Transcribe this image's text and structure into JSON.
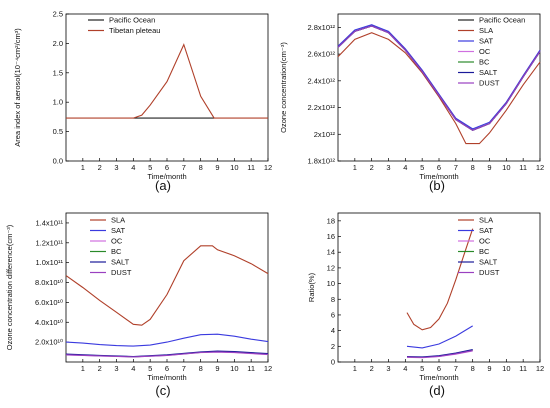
{
  "panel_labels": [
    "(a)",
    "(b)",
    "(c)",
    "(d)"
  ],
  "chart_data": [
    {
      "panel": "(a)",
      "type": "line",
      "xlabel": "Time/month",
      "ylabel": "Area index of aerosol(10⁻⁴cm²/cm³)",
      "xlim": [
        0,
        12
      ],
      "ylim": [
        0,
        2.5
      ],
      "xticks": [
        1,
        2,
        3,
        4,
        5,
        6,
        7,
        8,
        9,
        10,
        11,
        12
      ],
      "yticks": [
        0.0,
        0.5,
        1.0,
        1.5,
        2.0,
        2.5
      ],
      "ytick_labels": [
        "0.0",
        "0.5",
        "1.0",
        "1.5",
        "2.0",
        "2.5"
      ],
      "legend_position": "top-center",
      "series": [
        {
          "name": "Pacific Ocean",
          "color": "#222222",
          "x": [
            4,
            7,
            8.8
          ],
          "y": [
            0.73,
            0.73,
            0.73
          ]
        },
        {
          "name": "Tibetan pleteau",
          "color": "#b0402a",
          "x": [
            0,
            4,
            4.5,
            5,
            6,
            7,
            8,
            8.8,
            12
          ],
          "y": [
            0.73,
            0.73,
            0.78,
            0.95,
            1.35,
            1.98,
            1.1,
            0.73,
            0.73
          ]
        }
      ]
    },
    {
      "panel": "(b)",
      "type": "line",
      "xlabel": "Time/month",
      "ylabel": "Ozone concentration(cm⁻³)",
      "xlim": [
        0,
        12
      ],
      "ylim": [
        1800000000000.0,
        2900000000000.0
      ],
      "xticks": [
        1,
        2,
        3,
        4,
        5,
        6,
        7,
        8,
        9,
        10,
        11,
        12
      ],
      "yticks": [
        1800000000000.0,
        2000000000000.0,
        2200000000000.0,
        2400000000000.0,
        2600000000000.0,
        2800000000000.0
      ],
      "ytick_labels": [
        "1.8x10¹²",
        "2x10¹²",
        "2.2x10¹²",
        "2.4x10¹²",
        "2.6x10¹²",
        "2.8x10¹²"
      ],
      "legend_position": "top-right",
      "series": [
        {
          "name": "Pacific Ocean",
          "color": "#222222",
          "x": [
            0,
            1,
            2,
            3,
            4,
            5,
            6,
            7,
            8,
            9,
            10,
            11,
            12
          ],
          "y": [
            2650000000000.0,
            2770000000000.0,
            2810000000000.0,
            2760000000000.0,
            2630000000000.0,
            2470000000000.0,
            2290000000000.0,
            2110000000000.0,
            2030000000000.0,
            2080000000000.0,
            2230000000000.0,
            2430000000000.0,
            2620000000000.0
          ]
        },
        {
          "name": "SLA",
          "color": "#b0402a",
          "x": [
            0,
            1,
            2,
            3,
            4,
            5,
            6,
            7,
            7.6,
            8.4,
            9,
            10,
            11,
            12
          ],
          "y": [
            2580000000000.0,
            2710000000000.0,
            2760000000000.0,
            2710000000000.0,
            2610000000000.0,
            2460000000000.0,
            2280000000000.0,
            2080000000000.0,
            1930000000000.0,
            1930000000000.0,
            2010000000000.0,
            2180000000000.0,
            2370000000000.0,
            2540000000000.0
          ]
        },
        {
          "name": "SAT",
          "color": "#3a3adf",
          "x": [
            0,
            1,
            2,
            3,
            4,
            5,
            6,
            7,
            8,
            9,
            10,
            11,
            12
          ],
          "y": [
            2660000000000.0,
            2780000000000.0,
            2820000000000.0,
            2770000000000.0,
            2640000000000.0,
            2480000000000.0,
            2300000000000.0,
            2120000000000.0,
            2040000000000.0,
            2090000000000.0,
            2240000000000.0,
            2440000000000.0,
            2630000000000.0
          ]
        },
        {
          "name": "OC",
          "color": "#d070e0",
          "x": [
            0,
            1,
            2,
            3,
            4,
            5,
            6,
            7,
            8,
            9,
            10,
            11,
            12
          ],
          "y": [
            2650000000000.0,
            2770000000000.0,
            2810000000000.0,
            2760000000000.0,
            2630000000000.0,
            2470000000000.0,
            2290000000000.0,
            2110000000000.0,
            2030000000000.0,
            2080000000000.0,
            2230000000000.0,
            2430000000000.0,
            2620000000000.0
          ]
        },
        {
          "name": "BC",
          "color": "#2a8a2a",
          "x": [
            0,
            1,
            2,
            3,
            4,
            5,
            6,
            7,
            8,
            9,
            10,
            11,
            12
          ],
          "y": [
            2650000000000.0,
            2770000000000.0,
            2810000000000.0,
            2760000000000.0,
            2630000000000.0,
            2470000000000.0,
            2290000000000.0,
            2110000000000.0,
            2030000000000.0,
            2080000000000.0,
            2230000000000.0,
            2430000000000.0,
            2620000000000.0
          ]
        },
        {
          "name": "SALT",
          "color": "#1a1a9a",
          "x": [
            0,
            1,
            2,
            3,
            4,
            5,
            6,
            7,
            8,
            9,
            10,
            11,
            12
          ],
          "y": [
            2650000000000.0,
            2770000000000.0,
            2810000000000.0,
            2760000000000.0,
            2630000000000.0,
            2470000000000.0,
            2290000000000.0,
            2110000000000.0,
            2030000000000.0,
            2080000000000.0,
            2230000000000.0,
            2430000000000.0,
            2620000000000.0
          ]
        },
        {
          "name": "DUST",
          "color": "#9a40c0",
          "x": [
            0,
            1,
            2,
            3,
            4,
            5,
            6,
            7,
            8,
            9,
            10,
            11,
            12
          ],
          "y": [
            2650000000000.0,
            2770000000000.0,
            2810000000000.0,
            2760000000000.0,
            2630000000000.0,
            2470000000000.0,
            2290000000000.0,
            2110000000000.0,
            2030000000000.0,
            2080000000000.0,
            2230000000000.0,
            2430000000000.0,
            2620000000000.0
          ]
        }
      ]
    },
    {
      "panel": "(c)",
      "type": "line",
      "xlabel": "Time/month",
      "ylabel": "Ozone concentration difference(cm⁻³)",
      "xlim": [
        0,
        12
      ],
      "ylim": [
        0,
        150000000000.0
      ],
      "xticks": [
        1,
        2,
        3,
        4,
        5,
        6,
        7,
        8,
        9,
        10,
        11,
        12
      ],
      "yticks": [
        20000000000.0,
        40000000000.0,
        60000000000.0,
        80000000000.0,
        100000000000.0,
        120000000000.0,
        140000000000.0
      ],
      "ytick_labels": [
        "2.0x10¹⁰",
        "4.0x10¹⁰",
        "6.0x10¹⁰",
        "8.0x10¹⁰",
        "1.0x10¹¹",
        "1.2x10¹¹",
        "1.4x10¹¹"
      ],
      "legend_position": "top-left",
      "series": [
        {
          "name": "SLA",
          "color": "#b0402a",
          "x": [
            0,
            1,
            2,
            3,
            4,
            4.5,
            5,
            6,
            7,
            8,
            8.7,
            9,
            10,
            11,
            12
          ],
          "y": [
            87000000000.0,
            75000000000.0,
            62000000000.0,
            50000000000.0,
            38000000000.0,
            37000000000.0,
            43000000000.0,
            68000000000.0,
            102000000000.0,
            117000000000.0,
            117000000000.0,
            113000000000.0,
            107000000000.0,
            99000000000.0,
            89000000000.0
          ]
        },
        {
          "name": "SAT",
          "color": "#3a3adf",
          "x": [
            0,
            1,
            2,
            3,
            4,
            5,
            6,
            7,
            8,
            9,
            10,
            11,
            12
          ],
          "y": [
            20000000000.0,
            19000000000.0,
            17500000000.0,
            16500000000.0,
            16000000000.0,
            17000000000.0,
            20000000000.0,
            24000000000.0,
            27500000000.0,
            28000000000.0,
            26000000000.0,
            23000000000.0,
            20500000000.0
          ]
        },
        {
          "name": "OC",
          "color": "#d070e0",
          "x": [
            0,
            2,
            4,
            6,
            8,
            9,
            10,
            12
          ],
          "y": [
            7000000000.0,
            6000000000.0,
            5000000000.0,
            6500000000.0,
            9500000000.0,
            10000000000.0,
            9500000000.0,
            7500000000.0
          ]
        },
        {
          "name": "BC",
          "color": "#2a8a2a",
          "x": [
            0,
            2,
            4,
            6,
            8,
            9,
            10,
            12
          ],
          "y": [
            7500000000.0,
            6300000000.0,
            5200000000.0,
            6800000000.0,
            9800000000.0,
            10500000000.0,
            10000000000.0,
            8000000000.0
          ]
        },
        {
          "name": "SALT",
          "color": "#1a1a9a",
          "x": [
            0,
            2,
            4,
            6,
            8,
            9,
            10,
            12
          ],
          "y": [
            8000000000.0,
            6600000000.0,
            5500000000.0,
            7200000000.0,
            10200000000.0,
            11000000000.0,
            10500000000.0,
            8500000000.0
          ]
        },
        {
          "name": "DUST",
          "color": "#9a40c0",
          "x": [
            0,
            2,
            4,
            6,
            8,
            9,
            10,
            12
          ],
          "y": [
            7200000000.0,
            6100000000.0,
            5100000000.0,
            6600000000.0,
            9600000000.0,
            10200000000.0,
            9700000000.0,
            7700000000.0
          ]
        }
      ]
    },
    {
      "panel": "(d)",
      "type": "line",
      "xlabel": "Time/month",
      "ylabel": "Ratio(%)",
      "xlim": [
        0,
        12
      ],
      "ylim": [
        0,
        19
      ],
      "xticks": [
        1,
        2,
        3,
        4,
        5,
        6,
        7,
        8,
        9,
        10,
        11,
        12
      ],
      "yticks": [
        0,
        2,
        4,
        6,
        8,
        10,
        12,
        14,
        16,
        18
      ],
      "ytick_labels": [
        "0",
        "2",
        "4",
        "6",
        "8",
        "10",
        "12",
        "14",
        "16",
        "18"
      ],
      "legend_position": "top-right",
      "series": [
        {
          "name": "SLA",
          "color": "#b0402a",
          "x": [
            4.1,
            4.5,
            5.0,
            5.5,
            6.0,
            6.5,
            7.0,
            7.5,
            8.0
          ],
          "y": [
            6.3,
            4.8,
            4.1,
            4.4,
            5.5,
            7.5,
            10.5,
            13.8,
            17.0
          ]
        },
        {
          "name": "SAT",
          "color": "#3a3adf",
          "x": [
            4.1,
            5,
            6,
            7,
            8
          ],
          "y": [
            2.0,
            1.8,
            2.3,
            3.3,
            4.6
          ]
        },
        {
          "name": "OC",
          "color": "#d070e0",
          "x": [
            4.1,
            5,
            6,
            7,
            8
          ],
          "y": [
            0.6,
            0.55,
            0.7,
            1.0,
            1.4
          ]
        },
        {
          "name": "BC",
          "color": "#2a8a2a",
          "x": [
            4.1,
            5,
            6,
            7,
            8
          ],
          "y": [
            0.65,
            0.6,
            0.75,
            1.1,
            1.5
          ]
        },
        {
          "name": "SALT",
          "color": "#1a1a9a",
          "x": [
            4.1,
            5,
            6,
            7,
            8
          ],
          "y": [
            0.7,
            0.65,
            0.8,
            1.15,
            1.6
          ]
        },
        {
          "name": "DUST",
          "color": "#9a40c0",
          "x": [
            4.1,
            5,
            6,
            7,
            8
          ],
          "y": [
            0.62,
            0.57,
            0.72,
            1.05,
            1.45
          ]
        }
      ]
    }
  ]
}
